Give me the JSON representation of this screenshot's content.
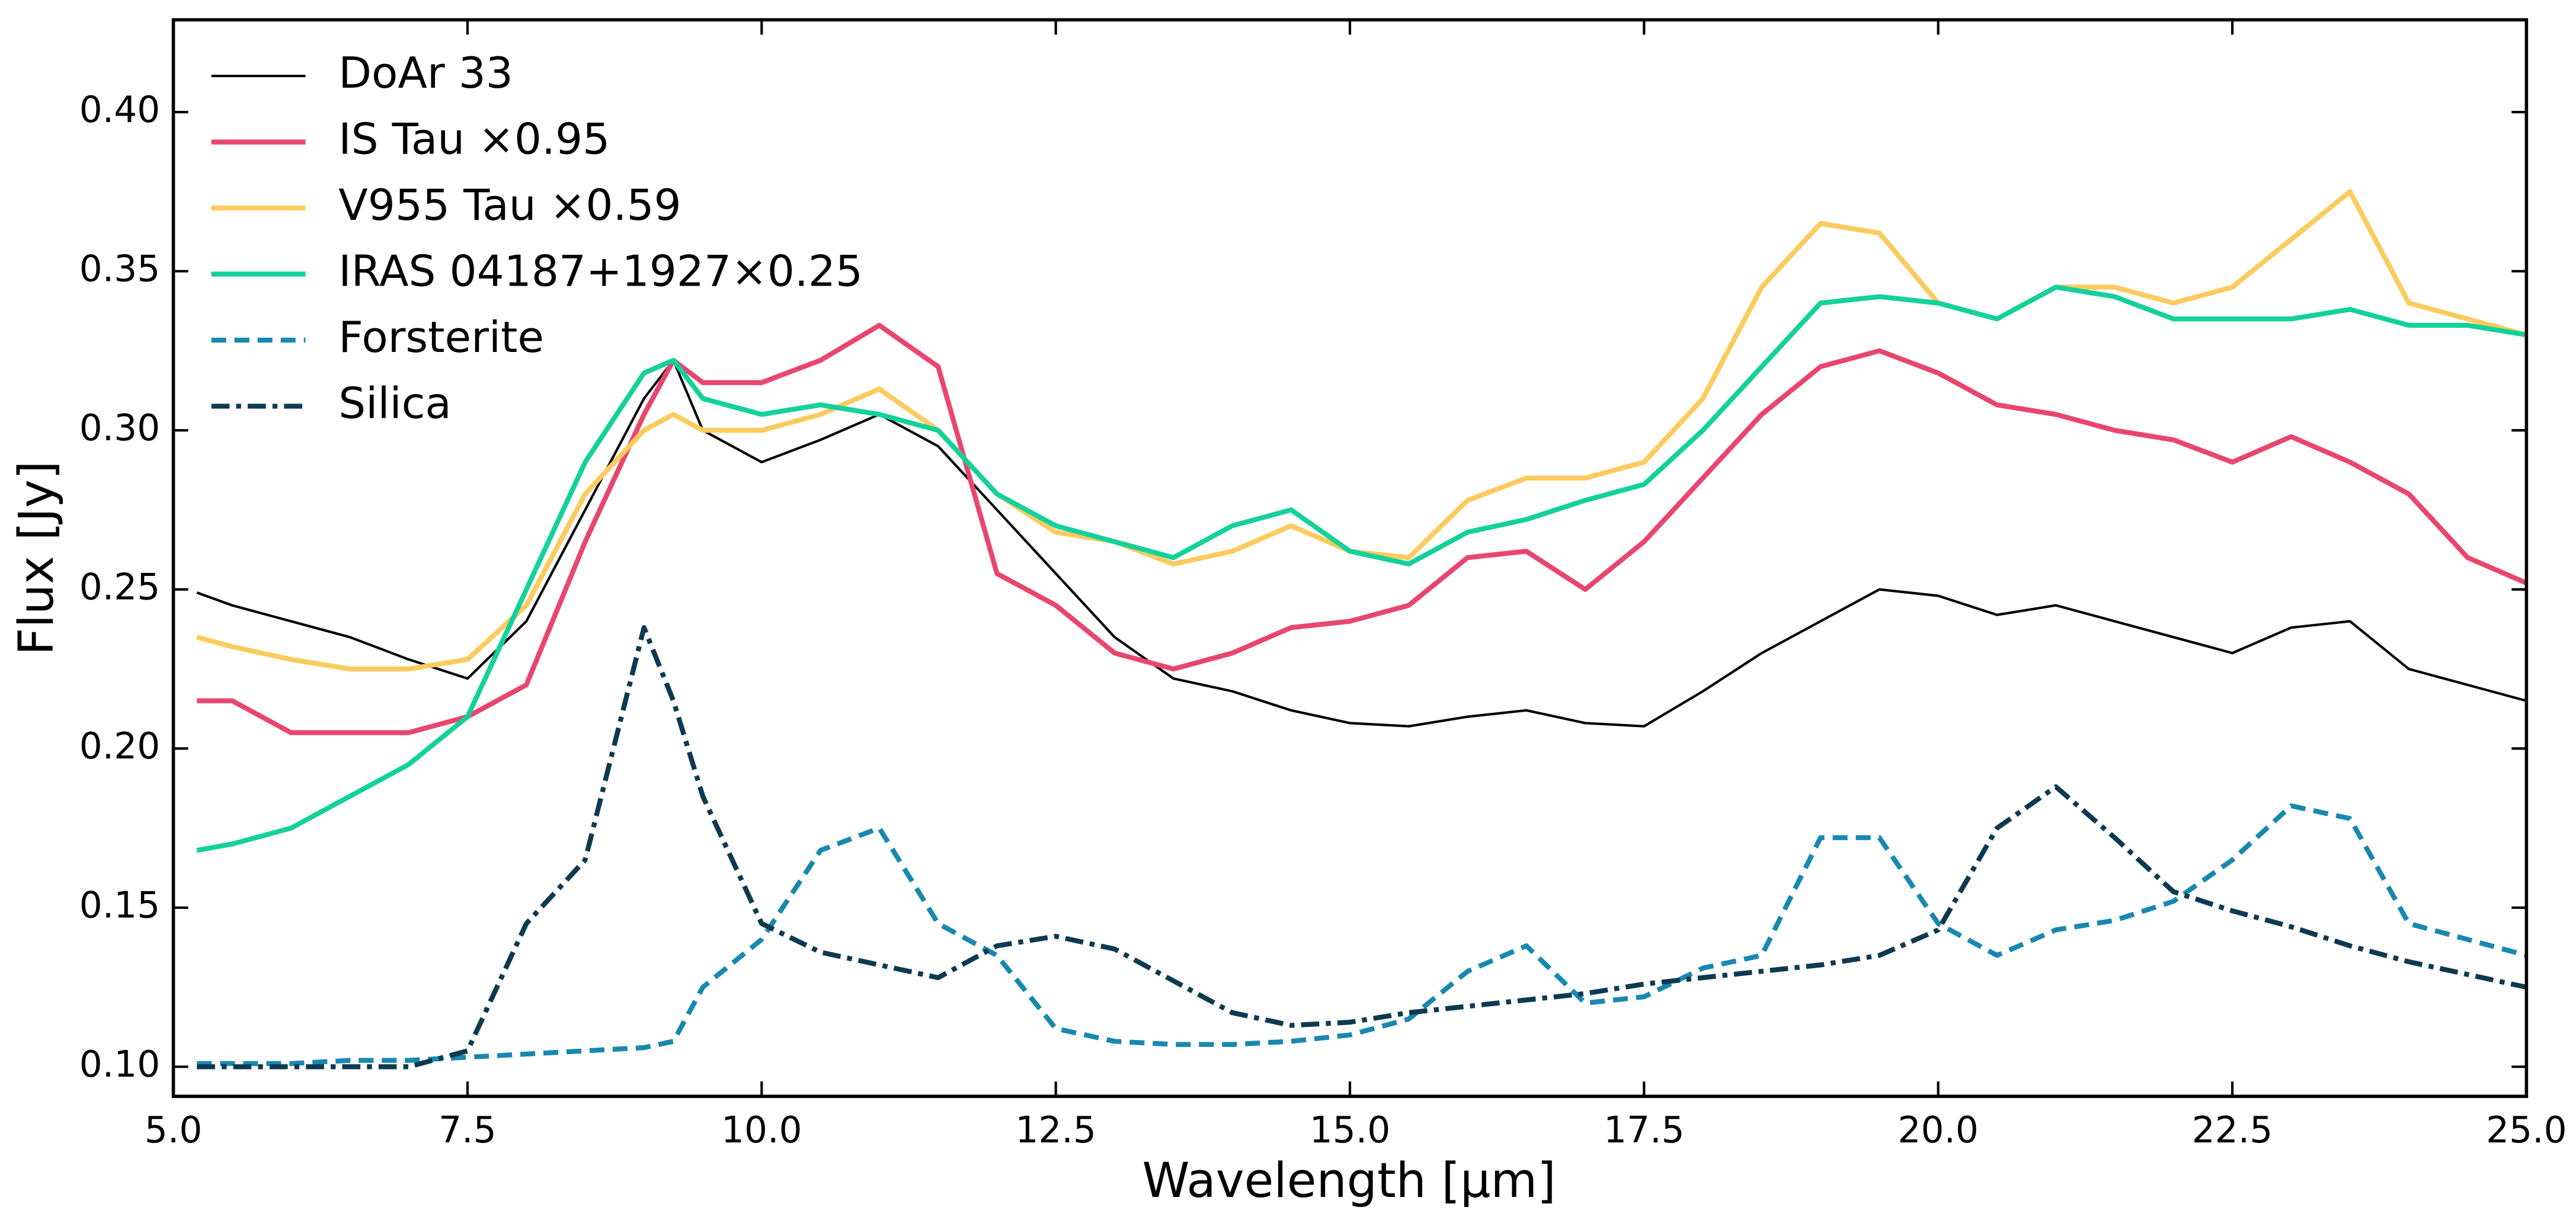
{
  "chart_data": {
    "type": "line",
    "xlabel": "Wavelength [μm]",
    "ylabel": "Flux [Jy]",
    "x": [
      5.2,
      5.5,
      6.0,
      6.5,
      7.0,
      7.5,
      8.0,
      8.5,
      9.0,
      9.25,
      9.5,
      10.0,
      10.5,
      11.0,
      11.5,
      12.0,
      12.5,
      13.0,
      13.5,
      14.0,
      14.5,
      15.0,
      15.5,
      16.0,
      16.5,
      17.0,
      17.5,
      18.0,
      18.5,
      19.0,
      19.5,
      20.0,
      20.5,
      21.0,
      21.5,
      22.0,
      22.5,
      23.0,
      23.5,
      24.0,
      24.5,
      25.0
    ],
    "series": [
      {
        "name": "DoAr 33",
        "color": "#000000",
        "width": 1.5,
        "linestyle": "solid",
        "values": [
          0.249,
          0.245,
          0.24,
          0.235,
          0.228,
          0.222,
          0.24,
          0.275,
          0.31,
          0.322,
          0.3,
          0.29,
          0.297,
          0.305,
          0.295,
          0.275,
          0.255,
          0.235,
          0.222,
          0.218,
          0.212,
          0.208,
          0.207,
          0.21,
          0.212,
          0.208,
          0.207,
          0.218,
          0.23,
          0.24,
          0.25,
          0.248,
          0.242,
          0.245,
          0.24,
          0.235,
          0.23,
          0.238,
          0.24,
          0.225,
          0.22,
          0.215
        ]
      },
      {
        "name": "IS Tau ×0.95",
        "color": "#e8466e",
        "width": 3,
        "linestyle": "solid",
        "values": [
          0.215,
          0.215,
          0.205,
          0.205,
          0.205,
          0.21,
          0.22,
          0.265,
          0.305,
          0.322,
          0.315,
          0.315,
          0.322,
          0.333,
          0.32,
          0.255,
          0.245,
          0.23,
          0.225,
          0.23,
          0.238,
          0.24,
          0.245,
          0.26,
          0.262,
          0.25,
          0.265,
          0.285,
          0.305,
          0.32,
          0.325,
          0.318,
          0.308,
          0.305,
          0.3,
          0.297,
          0.29,
          0.298,
          0.29,
          0.28,
          0.26,
          0.252
        ]
      },
      {
        "name": "V955 Tau ×0.59",
        "color": "#fccb5e",
        "width": 3,
        "linestyle": "solid",
        "values": [
          0.235,
          0.232,
          0.228,
          0.225,
          0.225,
          0.228,
          0.245,
          0.28,
          0.3,
          0.305,
          0.3,
          0.3,
          0.305,
          0.313,
          0.3,
          0.28,
          0.268,
          0.265,
          0.258,
          0.262,
          0.27,
          0.262,
          0.26,
          0.278,
          0.285,
          0.285,
          0.29,
          0.31,
          0.345,
          0.365,
          0.362,
          0.34,
          0.335,
          0.345,
          0.345,
          0.34,
          0.345,
          0.36,
          0.375,
          0.34,
          0.335,
          0.33
        ]
      },
      {
        "name": "IRAS 04187+1927×0.25",
        "color": "#14d19b",
        "width": 3,
        "linestyle": "solid",
        "values": [
          0.168,
          0.17,
          0.175,
          0.185,
          0.195,
          0.21,
          0.25,
          0.29,
          0.318,
          0.322,
          0.31,
          0.305,
          0.308,
          0.305,
          0.3,
          0.28,
          0.27,
          0.265,
          0.26,
          0.27,
          0.275,
          0.262,
          0.258,
          0.268,
          0.272,
          0.278,
          0.283,
          0.3,
          0.32,
          0.34,
          0.342,
          0.34,
          0.335,
          0.345,
          0.342,
          0.335,
          0.335,
          0.335,
          0.338,
          0.333,
          0.333,
          0.33
        ]
      },
      {
        "name": "Forsterite",
        "color": "#1888b0",
        "width": 3,
        "linestyle": "dashed",
        "values": [
          0.101,
          0.101,
          0.101,
          0.102,
          0.102,
          0.103,
          0.104,
          0.105,
          0.106,
          0.108,
          0.125,
          0.14,
          0.168,
          0.175,
          0.145,
          0.135,
          0.112,
          0.108,
          0.107,
          0.107,
          0.108,
          0.11,
          0.115,
          0.13,
          0.138,
          0.12,
          0.122,
          0.131,
          0.135,
          0.172,
          0.172,
          0.145,
          0.135,
          0.143,
          0.146,
          0.152,
          0.165,
          0.182,
          0.178,
          0.145,
          0.14,
          0.135
        ]
      },
      {
        "name": "Silica",
        "color": "#0d3a4f",
        "width": 3,
        "linestyle": "dashdot",
        "values": [
          0.1,
          0.1,
          0.1,
          0.1,
          0.1,
          0.105,
          0.145,
          0.165,
          0.238,
          0.215,
          0.185,
          0.145,
          0.136,
          0.132,
          0.128,
          0.138,
          0.141,
          0.137,
          0.127,
          0.117,
          0.113,
          0.114,
          0.117,
          0.119,
          0.121,
          0.123,
          0.126,
          0.128,
          0.13,
          0.132,
          0.135,
          0.143,
          0.175,
          0.188,
          0.172,
          0.155,
          0.149,
          0.144,
          0.138,
          0.133,
          0.129,
          0.125
        ]
      }
    ],
    "xlim": [
      5,
      25
    ],
    "xticks": [
      {
        "value": 5,
        "label": "5.0"
      },
      7.5,
      {
        "value": 10,
        "label": "10.0"
      },
      12.5,
      {
        "value": 15,
        "label": "15.0"
      },
      17.5,
      {
        "value": 20,
        "label": "20.0"
      },
      22.5,
      {
        "value": 25,
        "label": "25.0"
      }
    ],
    "ylim": [
      0.0907,
      0.429
    ],
    "yticks": [
      {
        "value": 0.1,
        "label": "0.10"
      },
      0.15,
      {
        "value": 0.2,
        "label": "0.20"
      },
      0.25,
      {
        "value": 0.3,
        "label": "0.30"
      },
      0.35,
      {
        "value": 0.4,
        "label": "0.40"
      }
    ],
    "grid": false,
    "legend": "upper left"
  }
}
